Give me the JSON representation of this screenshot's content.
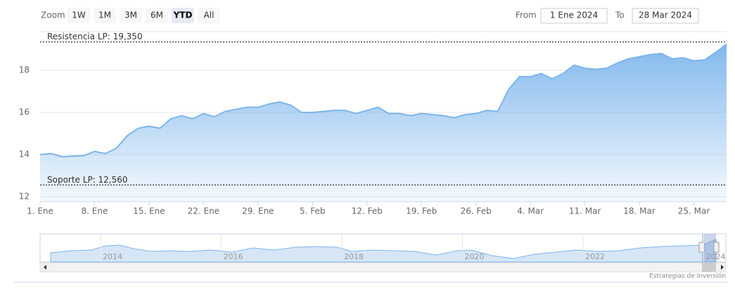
{
  "range_selector": {
    "label": "Zoom",
    "buttons": [
      "1W",
      "1M",
      "3M",
      "6M",
      "YTD",
      "All"
    ],
    "selected": 4,
    "from_label": "From",
    "from": "1 Ene 2024",
    "to_label": "To",
    "to": "28 Mar 2024"
  },
  "chart_data": {
    "type": "area",
    "color": "#7cb5ec",
    "categories": [
      "1. Ene",
      null,
      null,
      null,
      null,
      "8. Ene",
      null,
      null,
      null,
      null,
      "15. Ene",
      null,
      null,
      null,
      null,
      "22. Ene",
      null,
      null,
      null,
      null,
      "29. Ene",
      null,
      null,
      null,
      null,
      "5. Feb",
      null,
      null,
      null,
      null,
      "12. Feb",
      null,
      null,
      null,
      null,
      "19. Feb",
      null,
      null,
      null,
      null,
      "26. Feb",
      null,
      null,
      null,
      null,
      "4. Mar",
      null,
      null,
      null,
      null,
      "11. Mar",
      null,
      null,
      null,
      null,
      "18. Mar",
      null,
      null,
      null,
      null,
      "25. Mar",
      null,
      null,
      null
    ],
    "values": [
      14.0,
      14.05,
      13.9,
      13.93,
      13.95,
      14.15,
      14.05,
      14.3,
      14.9,
      15.25,
      15.35,
      15.25,
      15.7,
      15.85,
      15.7,
      15.95,
      15.8,
      16.05,
      16.15,
      16.25,
      16.25,
      16.4,
      16.5,
      16.35,
      16.0,
      16.0,
      16.05,
      16.1,
      16.1,
      15.95,
      16.1,
      16.25,
      15.95,
      15.95,
      15.85,
      15.95,
      15.9,
      15.85,
      15.75,
      15.9,
      15.95,
      16.1,
      16.05,
      17.1,
      17.7,
      17.7,
      17.85,
      17.6,
      17.85,
      18.25,
      18.1,
      18.05,
      18.1,
      18.35,
      18.55,
      18.65,
      18.75,
      18.8,
      18.55,
      18.6,
      18.45,
      18.5,
      18.85,
      19.25
    ],
    "ylim": [
      11.77,
      19.84
    ],
    "yticks": [
      12,
      14,
      16,
      18
    ],
    "grid": true,
    "plot_lines": [
      {
        "value": 19.35,
        "label": "Resistencia LP: 19,350"
      },
      {
        "value": 12.56,
        "label": "Soporte LP: 12,560"
      }
    ]
  },
  "navigator": {
    "years": [
      "2014",
      "2016",
      "2018",
      "2020",
      "2022",
      "2024"
    ]
  },
  "credits": "Estrategias de Inversión"
}
